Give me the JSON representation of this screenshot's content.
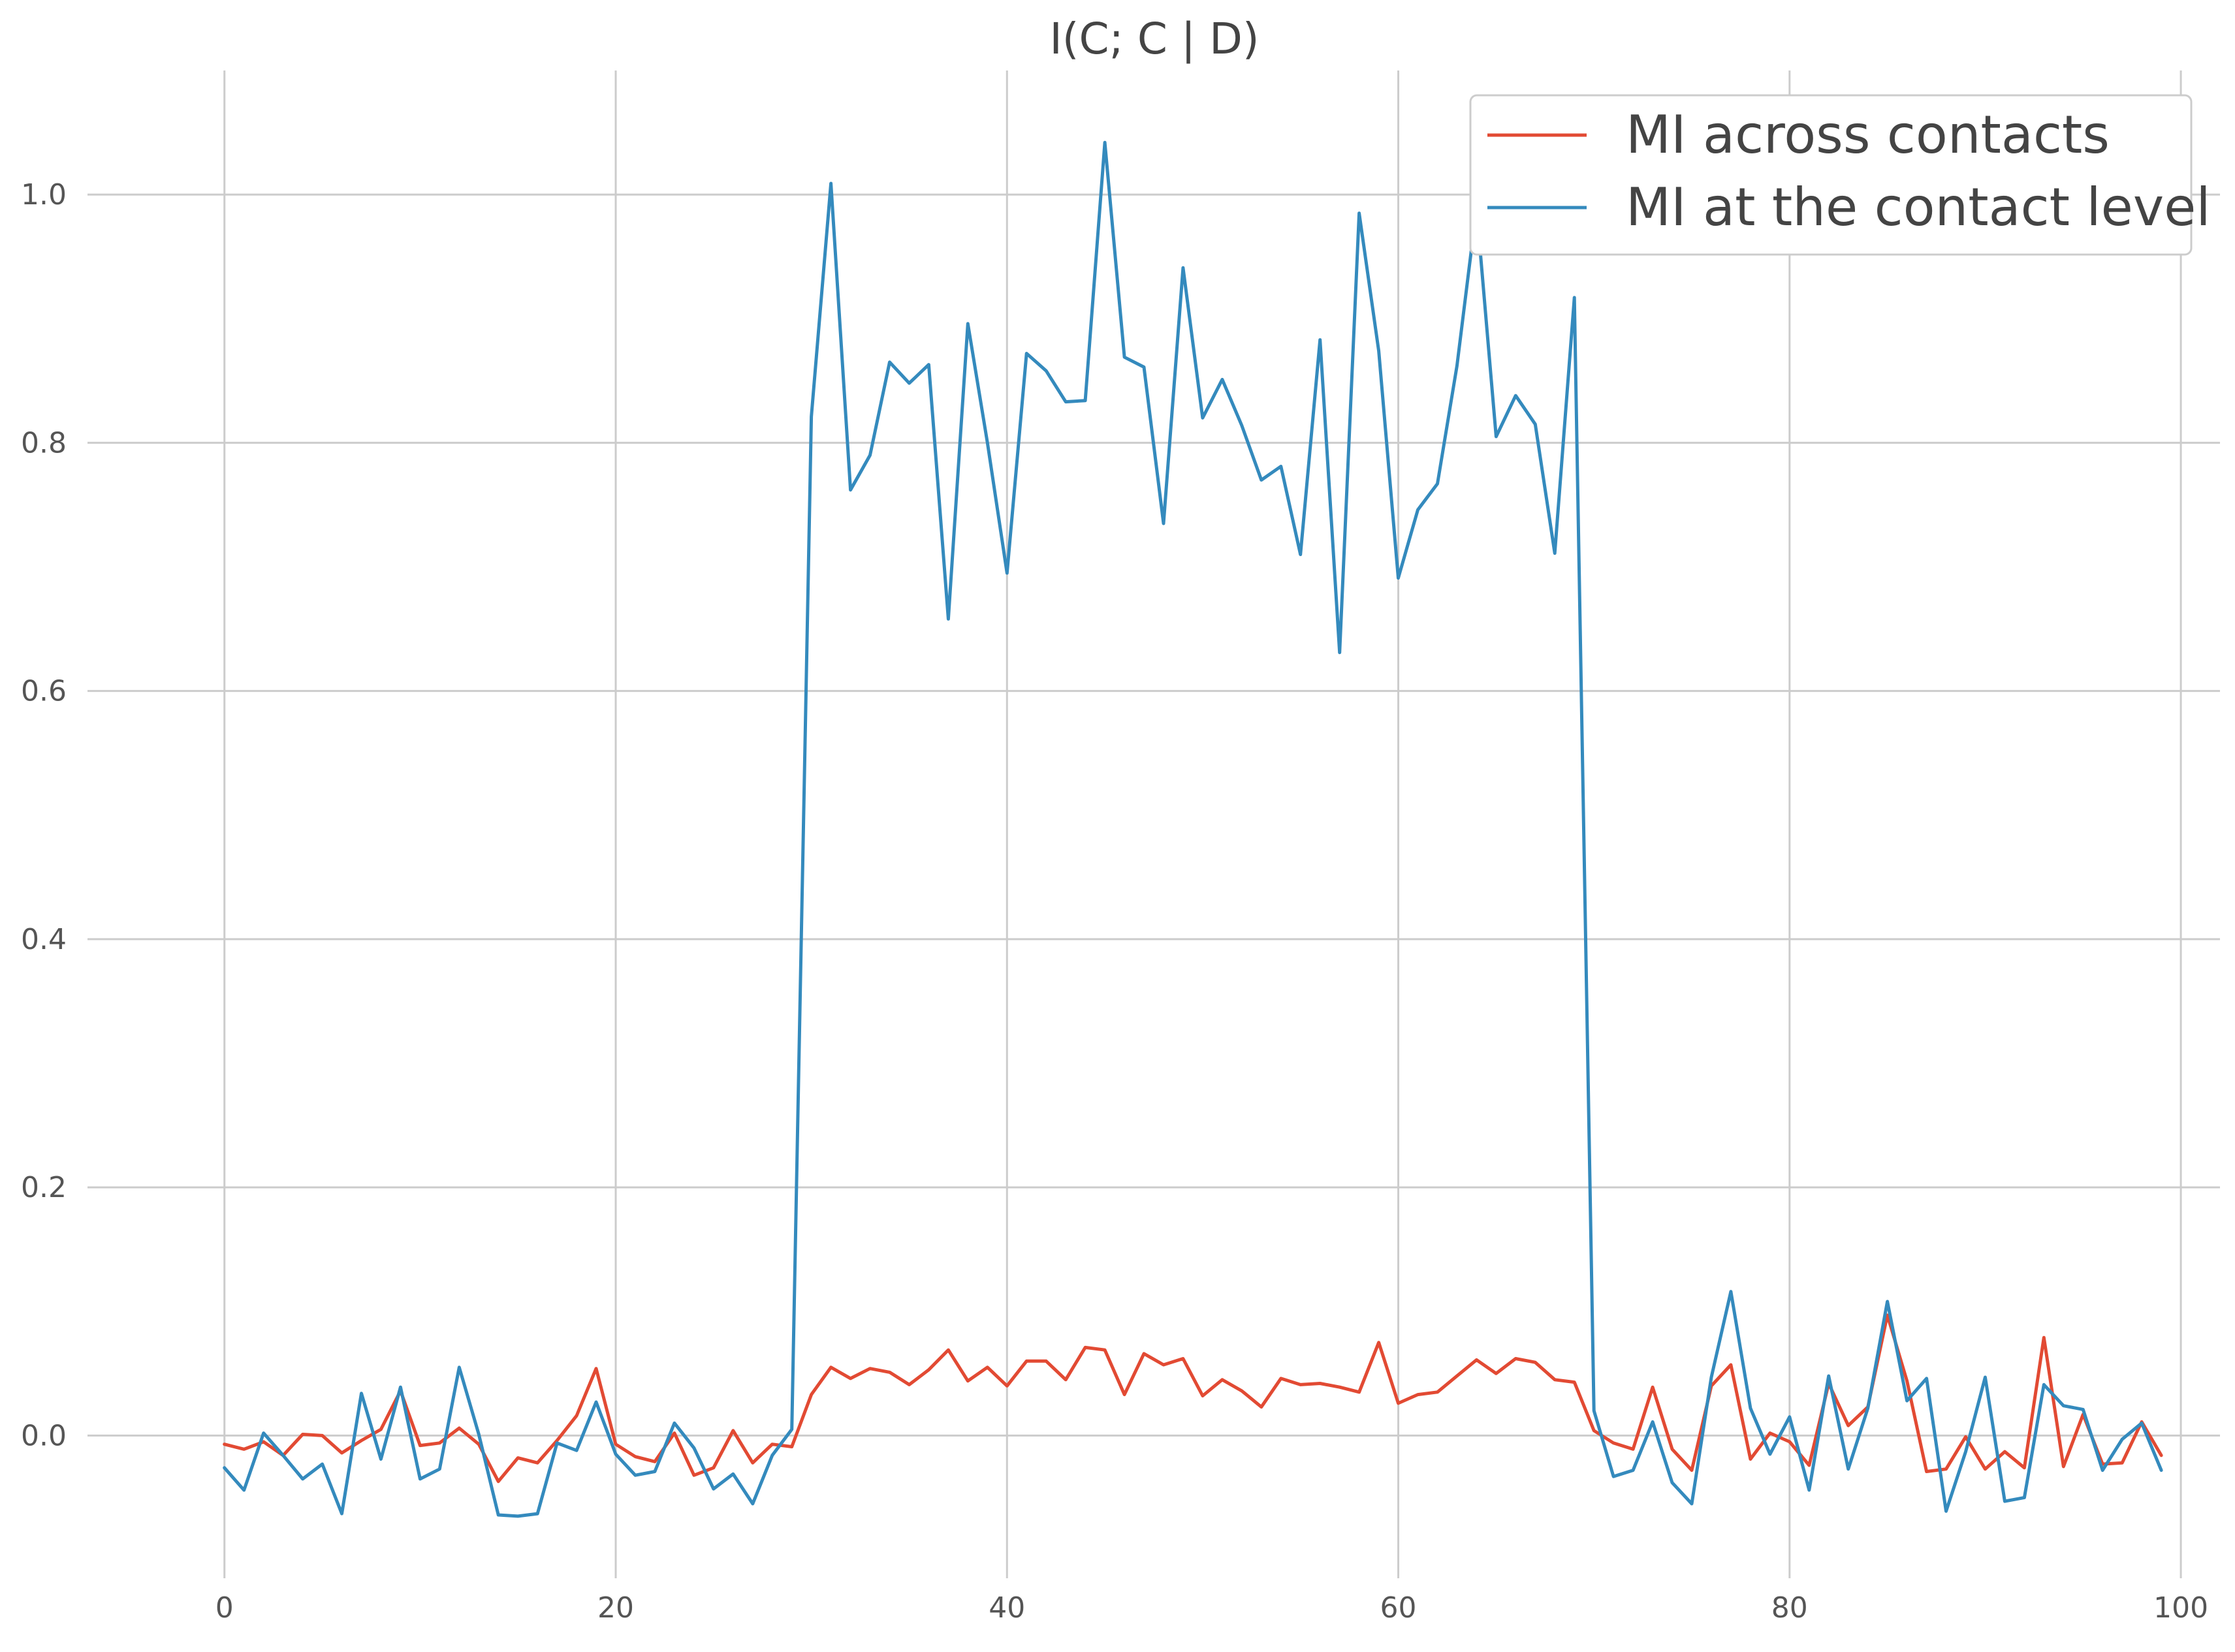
{
  "chart_data": {
    "type": "line",
    "title": "I(C; C | D)",
    "xlabel": "",
    "ylabel": "",
    "xlim": [
      -7,
      102
    ],
    "ylim": [
      -0.115,
      1.1
    ],
    "xticks": [
      0,
      20,
      40,
      60,
      80,
      100
    ],
    "yticks": [
      0.0,
      0.2,
      0.4,
      0.6,
      0.8,
      1.0
    ],
    "xtick_labels": [
      "0",
      "20",
      "40",
      "60",
      "80",
      "100"
    ],
    "ytick_labels": [
      "0.0",
      "0.2",
      "0.4",
      "0.6",
      "0.8",
      "1.0"
    ],
    "grid": true,
    "legend_position": "top-right",
    "x": [
      0,
      1,
      2,
      3,
      4,
      5,
      6,
      7,
      8,
      9,
      10,
      11,
      12,
      13,
      14,
      15,
      16,
      17,
      18,
      19,
      20,
      21,
      22,
      23,
      24,
      25,
      26,
      27,
      28,
      29,
      30,
      31,
      32,
      33,
      34,
      35,
      36,
      37,
      38,
      39,
      40,
      41,
      42,
      43,
      44,
      45,
      46,
      47,
      48,
      49,
      50,
      51,
      52,
      53,
      54,
      55,
      56,
      57,
      58,
      59,
      60,
      61,
      62,
      63,
      64,
      65,
      66,
      67,
      68,
      69,
      70,
      71,
      72,
      73,
      74,
      75,
      76,
      77,
      78,
      79,
      80,
      81,
      82,
      83,
      84,
      85,
      86,
      87,
      88,
      89,
      90,
      91,
      92,
      93,
      94,
      95,
      96,
      97,
      98,
      99
    ],
    "series": [
      {
        "name": "MI across contacts",
        "color": "#e24a33",
        "values": [
          -0.007,
          -0.011,
          -0.005,
          -0.016,
          0.001,
          0.0,
          -0.014,
          -0.004,
          0.005,
          0.036,
          -0.008,
          -0.006,
          0.006,
          -0.007,
          -0.037,
          -0.018,
          -0.022,
          -0.004,
          0.016,
          0.054,
          -0.007,
          -0.017,
          -0.021,
          0.002,
          -0.032,
          -0.026,
          0.004,
          -0.022,
          -0.007,
          -0.009,
          0.033,
          0.055,
          0.046,
          0.054,
          0.051,
          0.041,
          0.053,
          0.069,
          0.044,
          0.055,
          0.04,
          0.06,
          0.06,
          0.045,
          0.071,
          0.069,
          0.033,
          0.066,
          0.057,
          0.062,
          0.032,
          0.045,
          0.036,
          0.023,
          0.046,
          0.041,
          0.042,
          0.039,
          0.035,
          0.075,
          0.026,
          0.033,
          0.035,
          0.048,
          0.061,
          0.05,
          0.062,
          0.059,
          0.045,
          0.043,
          0.004,
          -0.006,
          -0.011,
          0.039,
          -0.011,
          -0.028,
          0.04,
          0.057,
          -0.019,
          0.002,
          -0.005,
          -0.024,
          0.042,
          0.008,
          0.023,
          0.097,
          0.044,
          -0.029,
          -0.027,
          -0.001,
          -0.027,
          -0.013,
          -0.026,
          0.079,
          -0.025,
          0.017,
          -0.023,
          -0.022,
          0.011,
          -0.016
        ]
      },
      {
        "name": "MI at the contact level",
        "color": "#348abd",
        "values": [
          -0.026,
          -0.044,
          0.002,
          -0.016,
          -0.035,
          -0.023,
          -0.063,
          0.034,
          -0.019,
          0.039,
          -0.035,
          -0.027,
          0.055,
          0.001,
          -0.064,
          -0.065,
          -0.063,
          -0.006,
          -0.012,
          0.027,
          -0.015,
          -0.032,
          -0.029,
          0.01,
          -0.01,
          -0.043,
          -0.031,
          -0.055,
          -0.016,
          0.005,
          0.821,
          1.009,
          0.762,
          0.79,
          0.865,
          0.848,
          0.863,
          0.658,
          0.896,
          0.8,
          0.695,
          0.872,
          0.858,
          0.833,
          0.834,
          1.042,
          0.869,
          0.861,
          0.735,
          0.941,
          0.82,
          0.851,
          0.814,
          0.77,
          0.781,
          0.71,
          0.883,
          0.631,
          0.985,
          0.874,
          0.691,
          0.746,
          0.767,
          0.862,
          0.989,
          0.805,
          0.838,
          0.815,
          0.711,
          0.917,
          0.02,
          -0.033,
          -0.028,
          0.011,
          -0.038,
          -0.055,
          0.047,
          0.116,
          0.022,
          -0.015,
          0.015,
          -0.044,
          0.048,
          -0.027,
          0.022,
          0.108,
          0.028,
          0.046,
          -0.061,
          -0.013,
          0.047,
          -0.053,
          -0.05,
          0.041,
          0.024,
          0.021,
          -0.028,
          -0.003,
          0.01,
          -0.028
        ]
      }
    ]
  }
}
